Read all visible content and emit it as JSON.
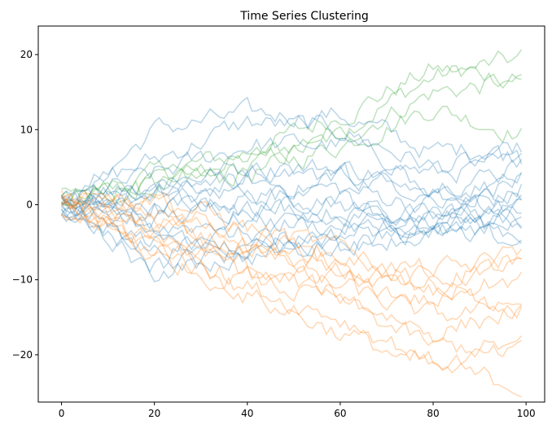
{
  "chart_data": {
    "type": "line",
    "title": "Time Series Clustering",
    "xlabel": "",
    "ylabel": "",
    "xlim": [
      -5,
      104
    ],
    "ylim": [
      -26.3,
      23.8
    ],
    "x_ticks": [
      0,
      20,
      40,
      60,
      80,
      100
    ],
    "y_ticks": [
      -20,
      -10,
      0,
      10,
      20
    ],
    "grid": false,
    "legend": "none",
    "line_alpha": 0.3,
    "n_points": 100,
    "cluster_colors": {
      "blue": "#1f77b4",
      "orange": "#ff7f0e",
      "green": "#2ca02c"
    },
    "series_anchor_x": [
      0,
      20,
      40,
      60,
      80,
      99
    ],
    "series": [
      {
        "cluster": "green",
        "anchors": [
          0,
          3,
          6,
          10,
          17,
          19.5
        ]
      },
      {
        "cluster": "green",
        "anchors": [
          1,
          4,
          7,
          12,
          18,
          17
        ]
      },
      {
        "cluster": "green",
        "anchors": [
          0,
          2,
          5,
          9,
          15,
          16.5
        ]
      },
      {
        "cluster": "green",
        "anchors": [
          1,
          3,
          4,
          8,
          13,
          9.5
        ]
      },
      {
        "cluster": "blue",
        "anchors": [
          -1,
          10,
          12,
          12,
          7,
          8
        ]
      },
      {
        "cluster": "blue",
        "anchors": [
          1,
          6,
          11,
          10,
          5,
          6
        ]
      },
      {
        "cluster": "blue",
        "anchors": [
          0,
          4,
          8,
          8,
          4,
          5.5
        ]
      },
      {
        "cluster": "blue",
        "anchors": [
          1,
          3,
          5,
          5,
          3,
          4.5
        ]
      },
      {
        "cluster": "blue",
        "anchors": [
          0,
          2,
          4,
          4,
          2,
          3
        ]
      },
      {
        "cluster": "blue",
        "anchors": [
          0,
          1,
          3,
          2,
          0,
          1
        ]
      },
      {
        "cluster": "blue",
        "anchors": [
          -1,
          0,
          2,
          0,
          -2,
          0
        ]
      },
      {
        "cluster": "blue",
        "anchors": [
          1,
          -1,
          1,
          1,
          -3,
          -1
        ]
      },
      {
        "cluster": "blue",
        "anchors": [
          0,
          -2,
          0,
          -1,
          -3,
          -2
        ]
      },
      {
        "cluster": "blue",
        "anchors": [
          -1,
          -3,
          -2,
          -3,
          -4,
          -3
        ]
      },
      {
        "cluster": "blue",
        "anchors": [
          -2,
          -5,
          -4,
          -2,
          -1,
          -4
        ]
      },
      {
        "cluster": "blue",
        "anchors": [
          1,
          -6,
          -5,
          -4,
          -2,
          2
        ]
      },
      {
        "cluster": "blue",
        "anchors": [
          -1,
          -8,
          -7,
          -5,
          -4,
          -5
        ]
      },
      {
        "cluster": "blue",
        "anchors": [
          0,
          -9,
          -6,
          -3,
          0,
          -1
        ]
      },
      {
        "cluster": "blue",
        "anchors": [
          1,
          -4,
          -6,
          -6,
          -3,
          6
        ]
      },
      {
        "cluster": "blue",
        "anchors": [
          -1,
          2,
          -1,
          4,
          1,
          -2
        ]
      },
      {
        "cluster": "orange",
        "anchors": [
          1,
          1,
          -3,
          -6,
          -11,
          -6
        ]
      },
      {
        "cluster": "orange",
        "anchors": [
          0,
          0,
          -4,
          -7,
          -9,
          -7
        ]
      },
      {
        "cluster": "orange",
        "anchors": [
          1,
          -1,
          -5,
          -8,
          -10,
          -8
        ]
      },
      {
        "cluster": "orange",
        "anchors": [
          -1,
          -2,
          -6,
          -9,
          -12,
          -10
        ]
      },
      {
        "cluster": "orange",
        "anchors": [
          0,
          -3,
          -7,
          -10,
          -13,
          -12
        ]
      },
      {
        "cluster": "orange",
        "anchors": [
          1,
          -4,
          -8,
          -11,
          -15,
          -13.5
        ]
      },
      {
        "cluster": "orange",
        "anchors": [
          -1,
          -5,
          -9,
          -12,
          -17,
          -14
        ]
      },
      {
        "cluster": "orange",
        "anchors": [
          0,
          -6,
          -10,
          -13,
          -19,
          -19
        ]
      },
      {
        "cluster": "orange",
        "anchors": [
          1,
          -7,
          -11,
          -15,
          -21,
          -20
        ]
      },
      {
        "cluster": "orange",
        "anchors": [
          -1,
          -5,
          -12,
          -17,
          -22,
          -24
        ]
      }
    ]
  }
}
